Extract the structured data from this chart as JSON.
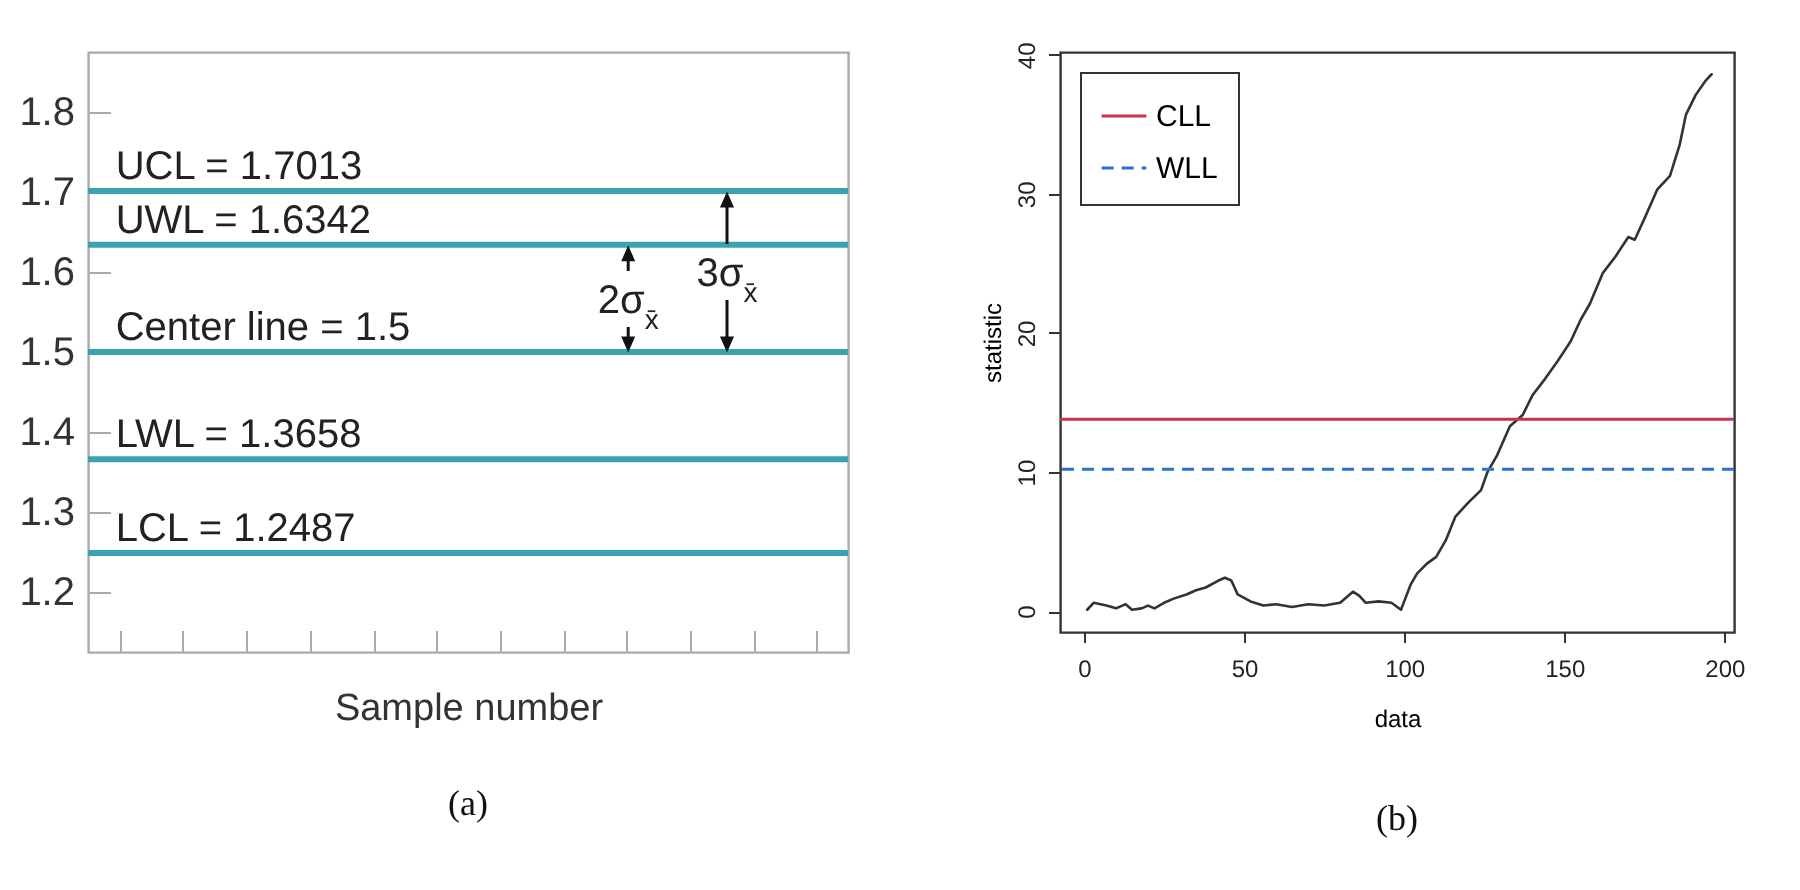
{
  "chart_data": [
    {
      "type": "line",
      "title": "(a)",
      "xlabel": "Sample number",
      "categories": [
        null,
        null,
        null,
        null,
        null,
        null,
        null,
        null,
        null,
        null,
        null,
        null
      ],
      "ylim": [
        1.125,
        1.875
      ],
      "yticks": [
        1.2,
        1.3,
        1.4,
        1.5,
        1.6,
        1.7,
        1.8
      ],
      "grid": false,
      "legend": false,
      "ref_lines": [
        {
          "axis": "y",
          "value": 1.7013,
          "label": "UCL = 1.7013",
          "color": "#3aa3b0"
        },
        {
          "axis": "y",
          "value": 1.6342,
          "label": "UWL = 1.6342",
          "color": "#3aa3b0"
        },
        {
          "axis": "y",
          "value": 1.5,
          "label": "Center line = 1.5",
          "color": "#3aa3b0"
        },
        {
          "axis": "y",
          "value": 1.3658,
          "label": "LWL = 1.3658",
          "color": "#3aa3b0"
        },
        {
          "axis": "y",
          "value": 1.2487,
          "label": "LCL = 1.2487",
          "color": "#3aa3b0"
        }
      ],
      "annotations": [
        "2σ$_{x̄}$",
        "3σ$_{x̄}$"
      ]
    },
    {
      "type": "line",
      "title": "(b)",
      "xlabel": "data",
      "ylabel": "statistic",
      "xlim": [
        -7.5,
        203
      ],
      "ylim": [
        -1.5,
        40.2
      ],
      "xticks": [
        0,
        50,
        100,
        150,
        200
      ],
      "yticks": [
        0,
        10,
        20,
        30,
        40
      ],
      "grid": false,
      "legend": "top left",
      "marker": "none",
      "line_style": "solid",
      "x": [
        1,
        3,
        7,
        10,
        13,
        15,
        18,
        20,
        22,
        25,
        28,
        32,
        35,
        38,
        42,
        44,
        46,
        48,
        52,
        56,
        60,
        65,
        70,
        75,
        80,
        84,
        86,
        88,
        92,
        96,
        99,
        100,
        102,
        104,
        107,
        110,
        113,
        116,
        120,
        124,
        126,
        129,
        133,
        137,
        140,
        144,
        148,
        152,
        155,
        158,
        162,
        166,
        170,
        172,
        175,
        179,
        183,
        186,
        188,
        191,
        194,
        196
      ],
      "series": [
        {
          "color": "#333333",
          "values": [
            0.1,
            0.6,
            0.4,
            0.2,
            0.5,
            0.1,
            0.2,
            0.4,
            0.2,
            0.6,
            0.9,
            1.2,
            1.5,
            1.7,
            2.2,
            2.4,
            2.2,
            1.2,
            0.7,
            0.4,
            0.5,
            0.3,
            0.5,
            0.4,
            0.6,
            1.4,
            1.1,
            0.6,
            0.7,
            0.6,
            0.1,
            0.7,
            1.9,
            2.7,
            3.4,
            3.9,
            5.1,
            6.8,
            7.8,
            8.7,
            10.0,
            11.2,
            13.3,
            14.1,
            15.5,
            16.7,
            18.0,
            19.4,
            20.9,
            22.1,
            24.3,
            25.5,
            26.9,
            26.7,
            28.2,
            30.3,
            31.3,
            33.5,
            35.7,
            37.1,
            38.1,
            38.6
          ]
        }
      ],
      "ref_lines": [
        {
          "axis": "y",
          "value": 13.8,
          "label": "CLL",
          "color": "#c8334f",
          "line_style": "solid"
        },
        {
          "axis": "y",
          "value": 10.2,
          "label": "WLL",
          "color": "#2f6fd0",
          "line_style": "dashed"
        }
      ]
    }
  ]
}
